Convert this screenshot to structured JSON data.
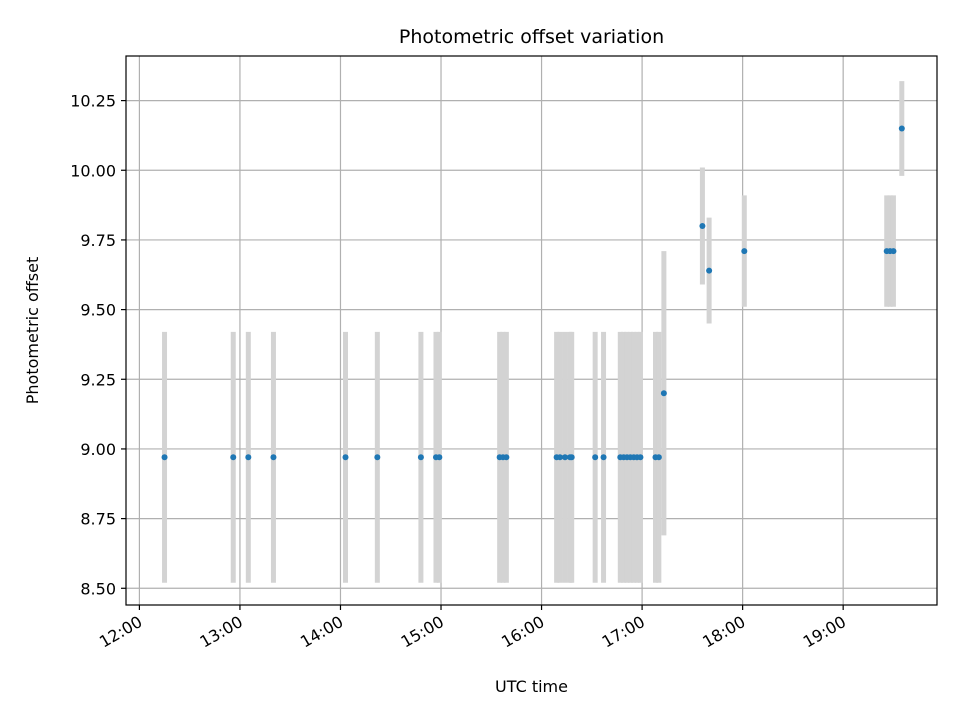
{
  "chart_data": {
    "type": "scatter",
    "title": "Photometric offset variation",
    "xlabel": "UTC time",
    "ylabel": "Photometric offset",
    "x_tick_labels": [
      "12:00",
      "13:00",
      "14:00",
      "15:00",
      "16:00",
      "17:00",
      "18:00",
      "19:00"
    ],
    "y_tick_labels": [
      "8.50",
      "8.75",
      "9.00",
      "9.25",
      "9.50",
      "9.75",
      "10.00",
      "10.25"
    ],
    "xlim": [
      "11:52",
      "19:56"
    ],
    "ylim": [
      8.44,
      10.41
    ],
    "grid": true,
    "colors": {
      "point": "#1f77b4",
      "errorbar": "#d3d3d3",
      "grid": "#b0b0b0"
    },
    "points": [
      {
        "x": "12:15",
        "y": 8.97,
        "err": 0.45
      },
      {
        "x": "12:56",
        "y": 8.97,
        "err": 0.45
      },
      {
        "x": "13:05",
        "y": 8.97,
        "err": 0.45
      },
      {
        "x": "13:20",
        "y": 8.97,
        "err": 0.45
      },
      {
        "x": "14:03",
        "y": 8.97,
        "err": 0.45
      },
      {
        "x": "14:22",
        "y": 8.97,
        "err": 0.45
      },
      {
        "x": "14:48",
        "y": 8.97,
        "err": 0.45
      },
      {
        "x": "14:57",
        "y": 8.97,
        "err": 0.45
      },
      {
        "x": "14:59",
        "y": 8.97,
        "err": 0.45
      },
      {
        "x": "15:35",
        "y": 8.97,
        "err": 0.45
      },
      {
        "x": "15:37",
        "y": 8.97,
        "err": 0.45
      },
      {
        "x": "15:39",
        "y": 8.97,
        "err": 0.45
      },
      {
        "x": "16:09",
        "y": 8.97,
        "err": 0.45
      },
      {
        "x": "16:11",
        "y": 8.97,
        "err": 0.45
      },
      {
        "x": "16:14",
        "y": 8.97,
        "err": 0.45
      },
      {
        "x": "16:17",
        "y": 8.97,
        "err": 0.45
      },
      {
        "x": "16:18",
        "y": 8.97,
        "err": 0.45
      },
      {
        "x": "16:32",
        "y": 8.97,
        "err": 0.45
      },
      {
        "x": "16:37",
        "y": 8.97,
        "err": 0.45
      },
      {
        "x": "16:47",
        "y": 8.97,
        "err": 0.45
      },
      {
        "x": "16:49",
        "y": 8.97,
        "err": 0.45
      },
      {
        "x": "16:51",
        "y": 8.97,
        "err": 0.45
      },
      {
        "x": "16:53",
        "y": 8.97,
        "err": 0.45
      },
      {
        "x": "16:55",
        "y": 8.97,
        "err": 0.45
      },
      {
        "x": "16:57",
        "y": 8.97,
        "err": 0.45
      },
      {
        "x": "16:59",
        "y": 8.97,
        "err": 0.45
      },
      {
        "x": "17:08",
        "y": 8.97,
        "err": 0.45
      },
      {
        "x": "17:10",
        "y": 8.97,
        "err": 0.45
      },
      {
        "x": "17:13",
        "y": 9.2,
        "err": 0.51
      },
      {
        "x": "17:36",
        "y": 9.8,
        "err": 0.21
      },
      {
        "x": "17:40",
        "y": 9.64,
        "err": 0.19
      },
      {
        "x": "18:01",
        "y": 9.71,
        "err": 0.2
      },
      {
        "x": "19:26",
        "y": 9.71,
        "err": 0.2
      },
      {
        "x": "19:28",
        "y": 9.71,
        "err": 0.2
      },
      {
        "x": "19:30",
        "y": 9.71,
        "err": 0.2
      },
      {
        "x": "19:35",
        "y": 10.15,
        "err": 0.17
      }
    ]
  }
}
